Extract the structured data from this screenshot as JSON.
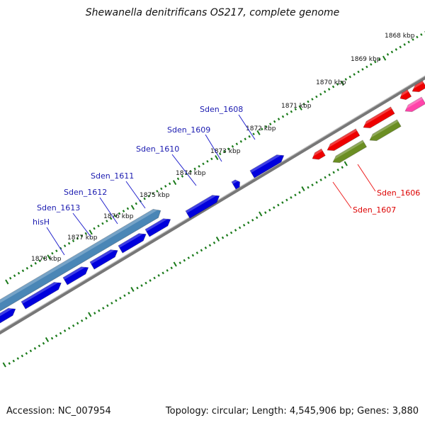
{
  "title": "Shewanella denitrificans OS217, complete genome",
  "footer": {
    "accession": "Accession: NC_007954",
    "topology": "Topology: circular; Length: 4,545,906 bp; Genes: 3,880"
  },
  "kbp_labels": [
    "1868 kbp",
    "1869 kbp",
    "1870 kbp",
    "1871 kbp",
    "1872 kbp",
    "1873 kbp",
    "1874 kbp",
    "1875 kbp",
    "1876 kbp",
    "1877 kbp",
    "1878 kbp"
  ],
  "gene_labels_forward": [
    "Sden_1608",
    "Sden_1609",
    "Sden_1610",
    "Sden_1611",
    "Sden_1612",
    "Sden_1613",
    "hisH"
  ],
  "gene_labels_reverse": [
    "Sden_1606",
    "Sden_1607"
  ],
  "colors": {
    "forward_gene": "#0000dd",
    "operon": "#4a86b6",
    "reverse_gene": "#ee0000",
    "reverse_gene_2": "#6b8e23",
    "rna_gene": "#ff44aa",
    "backbone": "#777777",
    "ticks": "#1a7a1a",
    "forward_label": "#1a1ab0",
    "reverse_label": "#dd0000"
  }
}
